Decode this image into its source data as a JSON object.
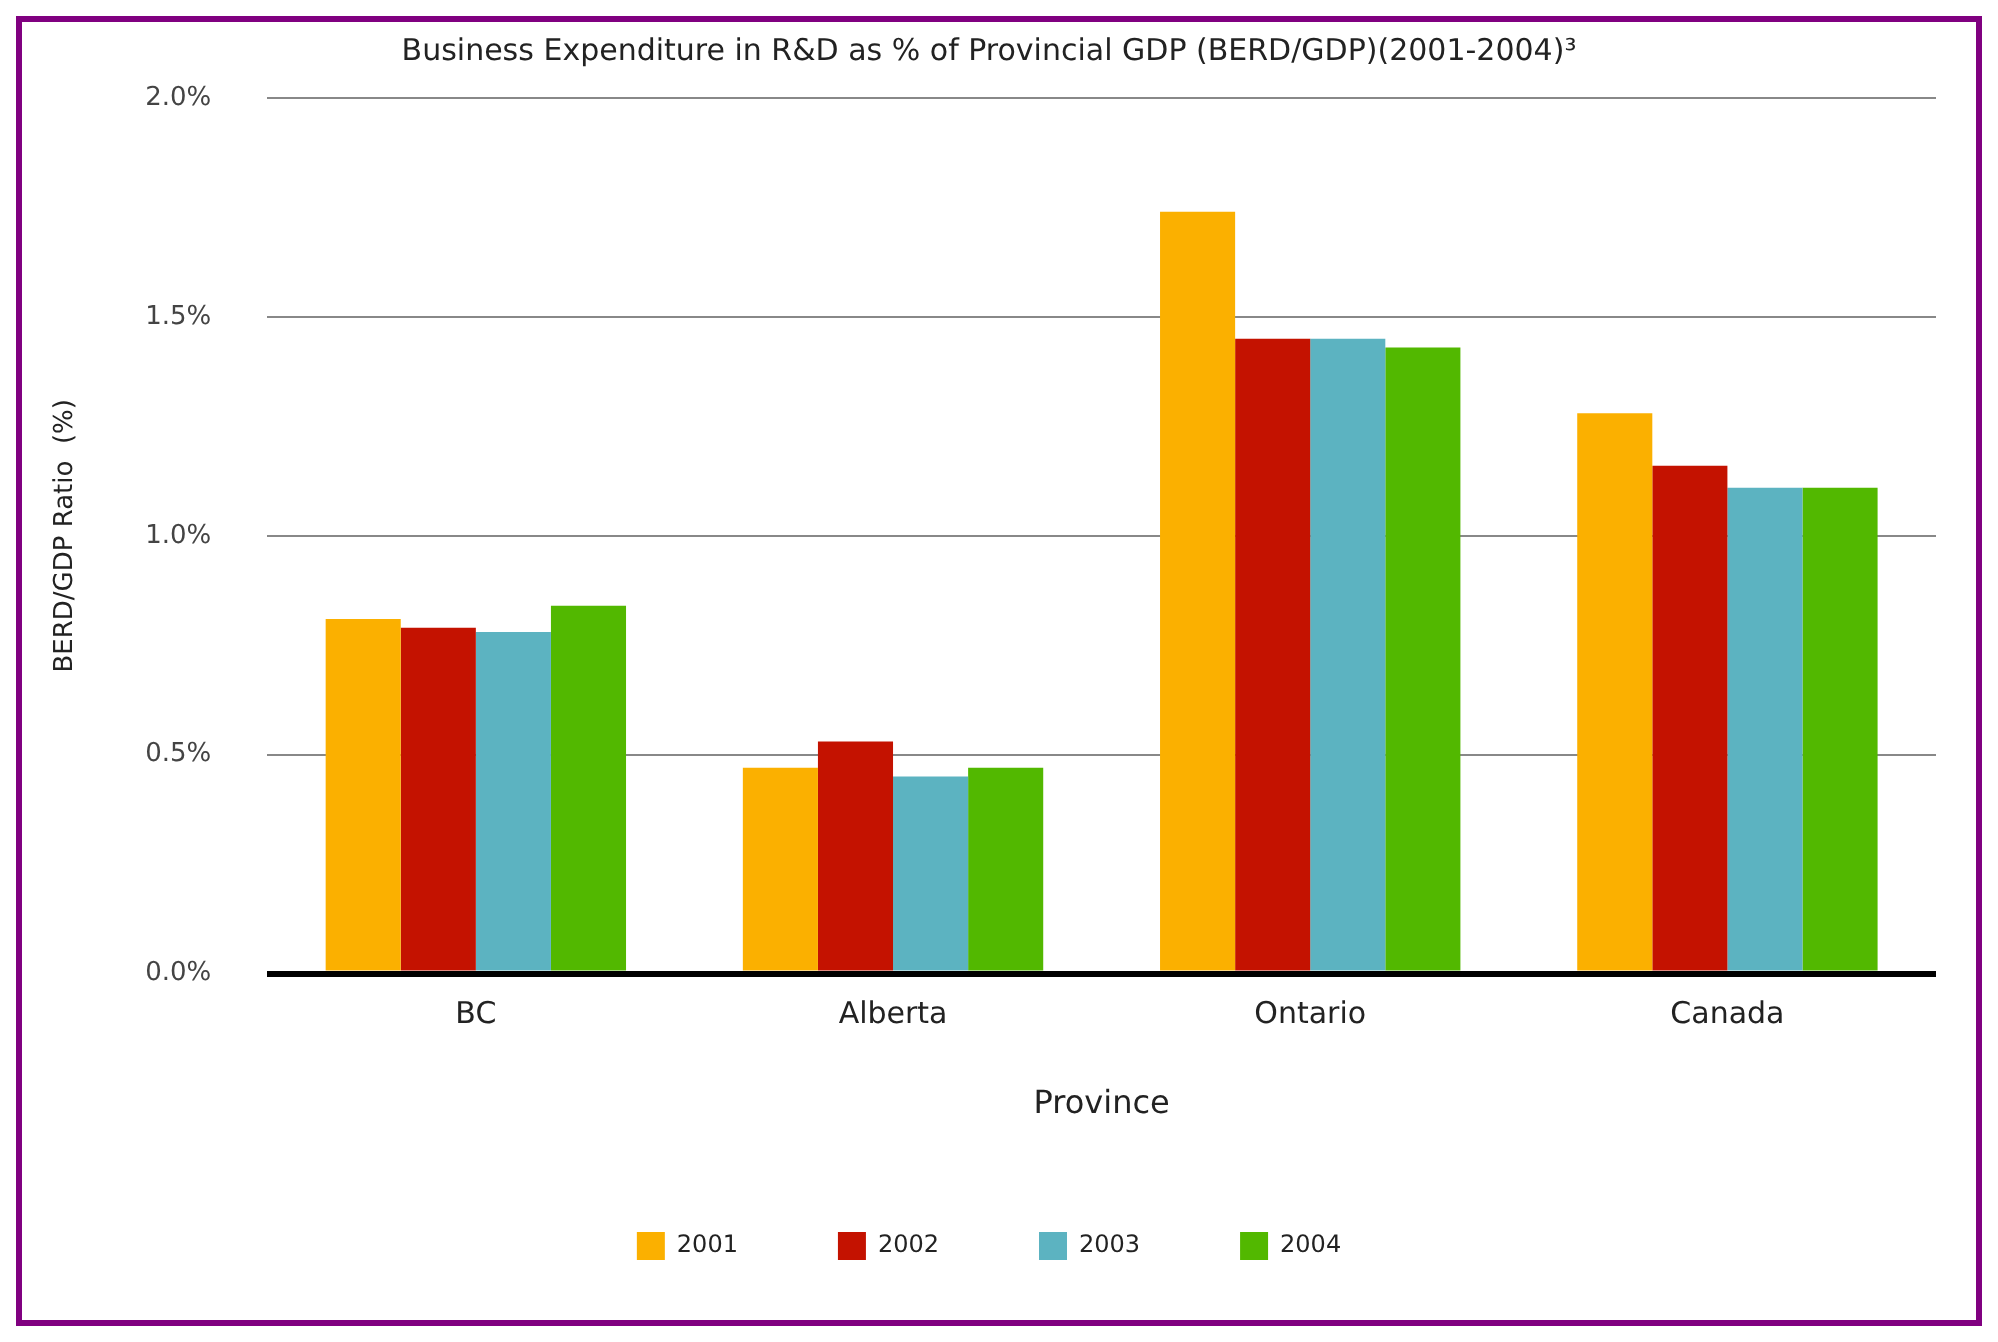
{
  "chart_data": {
    "type": "bar",
    "title": "Business Expenditure in R&D as % of Provincial GDP (BERD/GDP)(2001-2004)³",
    "xlabel": "Province",
    "ylabel": "BERD/GDP Ratio  (%)",
    "categories": [
      "BC",
      "Alberta",
      "Ontario",
      "Canada"
    ],
    "series": [
      {
        "name": "2001",
        "color": "#fbb000",
        "values": [
          0.81,
          0.47,
          1.74,
          1.28
        ]
      },
      {
        "name": "2002",
        "color": "#c41200",
        "values": [
          0.79,
          0.53,
          1.45,
          1.16
        ]
      },
      {
        "name": "2003",
        "color": "#5cb3c1",
        "values": [
          0.78,
          0.45,
          1.45,
          1.11
        ]
      },
      {
        "name": "2004",
        "color": "#52b800",
        "values": [
          0.84,
          0.47,
          1.43,
          1.11
        ]
      }
    ],
    "ylim": [
      0,
      2
    ],
    "yticks": [
      {
        "value": 0,
        "label": "0.0%"
      },
      {
        "value": 0.5,
        "label": "0.5%"
      },
      {
        "value": 1,
        "label": "1.0%"
      },
      {
        "value": 1.5,
        "label": "1.5%"
      },
      {
        "value": 2,
        "label": "2.0%"
      }
    ],
    "grid": "y",
    "legend": "bottom"
  }
}
